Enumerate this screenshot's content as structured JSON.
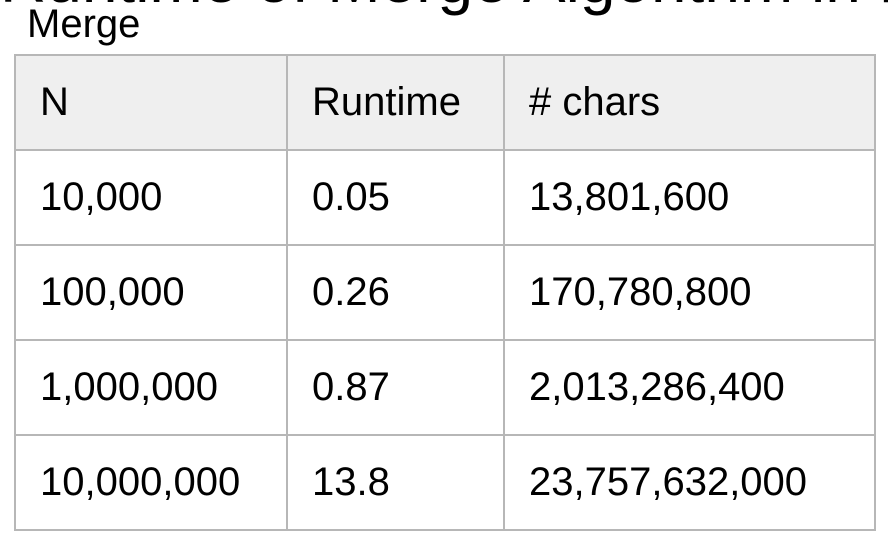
{
  "slide": {
    "title_partial": "Runtime of Merge Algorithm in Practice",
    "caption": "Merge"
  },
  "table": {
    "headers": [
      "N",
      "Runtime",
      "# chars"
    ],
    "rows": [
      [
        "10,000",
        "0.05",
        "13,801,600"
      ],
      [
        "100,000",
        "0.26",
        "170,780,800"
      ],
      [
        "1,000,000",
        "0.87",
        "2,013,286,400"
      ],
      [
        "10,000,000",
        "13.8",
        "23,757,632,000"
      ]
    ]
  }
}
